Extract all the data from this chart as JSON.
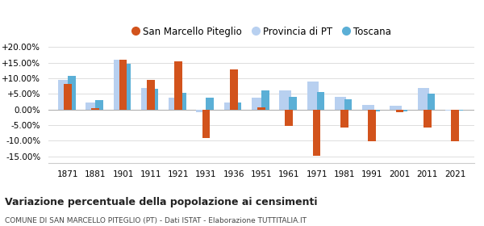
{
  "years": [
    1871,
    1881,
    1901,
    1911,
    1921,
    1931,
    1936,
    1951,
    1961,
    1971,
    1981,
    1991,
    2001,
    2011,
    2021
  ],
  "san_marcello": [
    8.3,
    0.5,
    15.8,
    9.5,
    15.3,
    -9.0,
    12.8,
    0.8,
    -5.3,
    -14.8,
    -5.8,
    -10.2,
    -0.8,
    -5.8,
    -10.2
  ],
  "provincia_pt": [
    9.5,
    2.2,
    15.8,
    7.0,
    3.9,
    -0.8,
    2.2,
    3.8,
    6.0,
    9.0,
    4.0,
    1.5,
    1.2,
    6.8,
    -0.3
  ],
  "toscana": [
    10.8,
    3.0,
    14.5,
    6.5,
    5.3,
    3.8,
    2.2,
    6.2,
    4.1,
    5.6,
    3.2,
    -0.5,
    -0.5,
    5.0,
    -0.3
  ],
  "color_san_marcello": "#d2531c",
  "color_provincia": "#b8d0f0",
  "color_toscana": "#5bafd6",
  "title": "Variazione percentuale della popolazione ai censimenti",
  "subtitle": "COMUNE DI SAN MARCELLO PITEGLIO (PT) - Dati ISTAT - Elaborazione TUTTITALIA.IT",
  "ylim": [
    -17,
    22
  ],
  "yticks": [
    -15,
    -10,
    -5,
    0,
    5,
    10,
    15,
    20
  ],
  "ytick_labels": [
    "-15.00%",
    "-10.00%",
    "-5.00%",
    "0.00%",
    "+5.00%",
    "+10.00%",
    "+15.00%",
    "+20.00%"
  ],
  "background_color": "#ffffff",
  "grid_color": "#dddddd"
}
